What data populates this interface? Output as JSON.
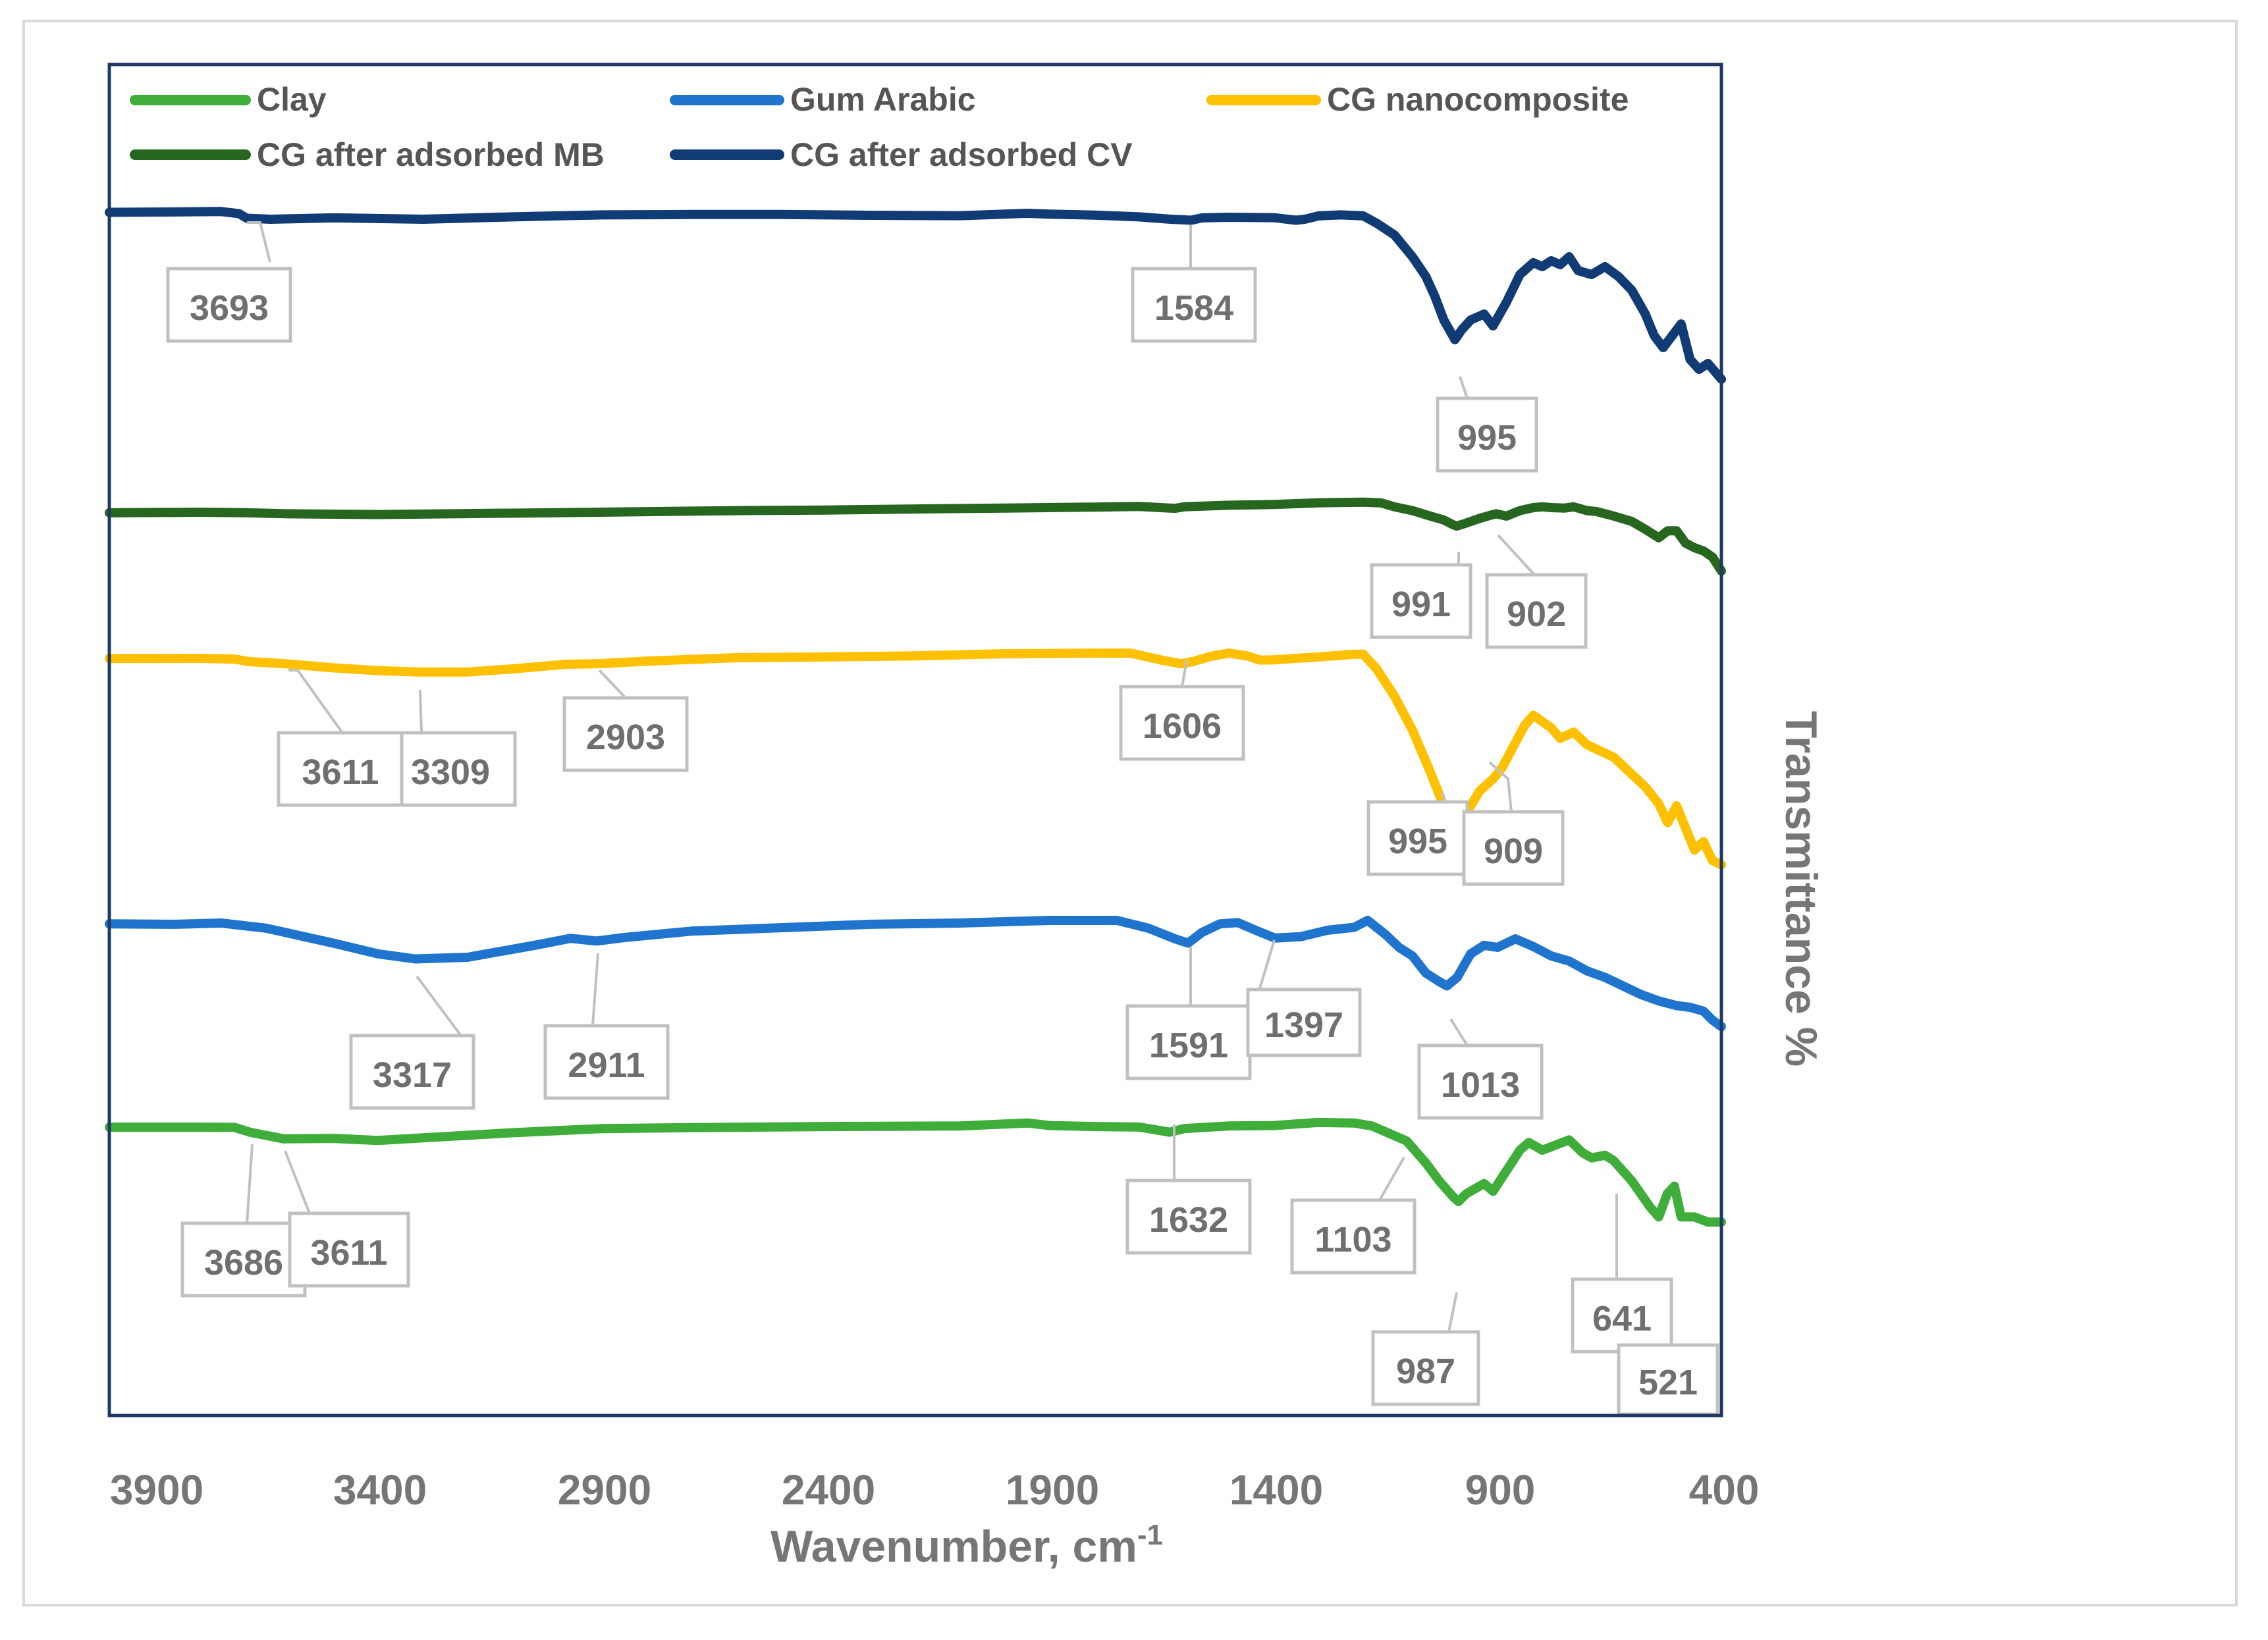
{
  "chart_data": {
    "type": "line",
    "title": "",
    "xlabel": "Wavenumber, cm",
    "xlabel_superscript": "-1",
    "ylabel": "Transmittance %",
    "xlim": [
      4000,
      400
    ],
    "x_ticks": [
      3900,
      3400,
      2900,
      2400,
      1900,
      1400,
      900,
      400
    ],
    "tick_labels": [
      "3900",
      "3400",
      "2900",
      "2400",
      "1900",
      "1400",
      "900",
      "400"
    ],
    "legend_position": "top, inside plot area",
    "grid": false,
    "series": [
      {
        "name": "Clay",
        "color": "#3ead3a",
        "points": [
          [
            4000,
            0.53
          ],
          [
            3800,
            0.52
          ],
          [
            3720,
            0.56
          ],
          [
            3686,
            1.5
          ],
          [
            3611,
            2.8
          ],
          [
            3500,
            2.7
          ],
          [
            3400,
            3.1
          ],
          [
            3300,
            2.6
          ],
          [
            3100,
            1.6
          ],
          [
            2900,
            0.8
          ],
          [
            2700,
            0.6
          ],
          [
            2400,
            0.4
          ],
          [
            2100,
            0.3
          ],
          [
            1950,
            -0.3
          ],
          [
            1900,
            0.2
          ],
          [
            1800,
            0.4
          ],
          [
            1700,
            0.5
          ],
          [
            1632,
            1.5
          ],
          [
            1600,
            0.8
          ],
          [
            1500,
            0.3
          ],
          [
            1400,
            0.2
          ],
          [
            1300,
            -0.4
          ],
          [
            1220,
            -0.3
          ],
          [
            1180,
            0.3
          ],
          [
            1103,
            3.2
          ],
          [
            1060,
            7.5
          ],
          [
            1030,
            11.0
          ],
          [
            1000,
            14.0
          ],
          [
            987,
            15.0
          ],
          [
            970,
            13.5
          ],
          [
            950,
            12.5
          ],
          [
            930,
            11.5
          ],
          [
            910,
            13.0
          ],
          [
            880,
            9.0
          ],
          [
            850,
            5.0
          ],
          [
            830,
            3.5
          ],
          [
            800,
            5.0
          ],
          [
            770,
            4.0
          ],
          [
            740,
            3.0
          ],
          [
            710,
            5.5
          ],
          [
            690,
            6.5
          ],
          [
            660,
            6.0
          ],
          [
            641,
            7.0
          ],
          [
            600,
            11.0
          ],
          [
            560,
            16.0
          ],
          [
            540,
            18.0
          ],
          [
            521,
            13.5
          ],
          [
            505,
            12.0
          ],
          [
            490,
            18.0
          ],
          [
            460,
            18.0
          ],
          [
            430,
            19.0
          ],
          [
            400,
            19.0
          ]
        ],
        "callouts": [
          3686,
          3611,
          1632,
          1103,
          987,
          641,
          521
        ]
      },
      {
        "name": "Gum Arabic",
        "color": "#1f74cd",
        "points": [
          [
            4000,
            0.5
          ],
          [
            3850,
            0.6
          ],
          [
            3750,
            0.3
          ],
          [
            3650,
            1.5
          ],
          [
            3500,
            5.0
          ],
          [
            3400,
            7.5
          ],
          [
            3317,
            8.7
          ],
          [
            3200,
            8.3
          ],
          [
            3050,
            5.5
          ],
          [
            2970,
            3.9
          ],
          [
            2911,
            4.5
          ],
          [
            2850,
            3.7
          ],
          [
            2700,
            2.2
          ],
          [
            2500,
            1.4
          ],
          [
            2300,
            0.6
          ],
          [
            2100,
            0.3
          ],
          [
            1900,
            -0.3
          ],
          [
            1750,
            -0.3
          ],
          [
            1680,
            1.5
          ],
          [
            1620,
            4.0
          ],
          [
            1591,
            5.0
          ],
          [
            1560,
            2.5
          ],
          [
            1520,
            0.5
          ],
          [
            1480,
            0.2
          ],
          [
            1440,
            2.0
          ],
          [
            1400,
            3.7
          ],
          [
            1397,
            3.8
          ],
          [
            1340,
            3.5
          ],
          [
            1280,
            2.0
          ],
          [
            1220,
            1.3
          ],
          [
            1190,
            -0.3
          ],
          [
            1150,
            3.0
          ],
          [
            1120,
            6.0
          ],
          [
            1090,
            8.0
          ],
          [
            1060,
            12.0
          ],
          [
            1030,
            14.0
          ],
          [
            1013,
            15.0
          ],
          [
            990,
            13.0
          ],
          [
            960,
            7.5
          ],
          [
            930,
            5.5
          ],
          [
            900,
            6.0
          ],
          [
            860,
            4.0
          ],
          [
            820,
            5.8
          ],
          [
            780,
            8.0
          ],
          [
            740,
            9.2
          ],
          [
            700,
            11.5
          ],
          [
            660,
            13.0
          ],
          [
            620,
            15.0
          ],
          [
            580,
            17.0
          ],
          [
            540,
            18.5
          ],
          [
            500,
            19.6
          ],
          [
            470,
            20.0
          ],
          [
            440,
            20.9
          ],
          [
            420,
            23.0
          ],
          [
            400,
            24.5
          ]
        ],
        "callouts": [
          3317,
          2911,
          1591,
          1397,
          1013
        ]
      },
      {
        "name": "CG nanocomposite",
        "color": "#ffc000",
        "points": [
          [
            4000,
            0.1
          ],
          [
            3800,
            0.0
          ],
          [
            3720,
            0.3
          ],
          [
            3690,
            1.5
          ],
          [
            3611,
            2.5
          ],
          [
            3500,
            4.5
          ],
          [
            3400,
            5.8
          ],
          [
            3309,
            6.5
          ],
          [
            3200,
            6.5
          ],
          [
            3100,
            5.0
          ],
          [
            2980,
            2.8
          ],
          [
            2903,
            2.5
          ],
          [
            2800,
            1.3
          ],
          [
            2600,
            -0.3
          ],
          [
            2400,
            -0.7
          ],
          [
            2200,
            -1.2
          ],
          [
            2000,
            -2.2
          ],
          [
            1800,
            -2.5
          ],
          [
            1720,
            -2.5
          ],
          [
            1650,
            0.8
          ],
          [
            1606,
            2.6
          ],
          [
            1580,
            1.5
          ],
          [
            1540,
            -1.0
          ],
          [
            1500,
            -2.5
          ],
          [
            1460,
            -1.2
          ],
          [
            1430,
            0.8
          ],
          [
            1400,
            0.7
          ],
          [
            1300,
            -0.7
          ],
          [
            1220,
            -1.9
          ],
          [
            1200,
            -2.0
          ],
          [
            1170,
            5.0
          ],
          [
            1130,
            18.0
          ],
          [
            1090,
            34.0
          ],
          [
            1050,
            54.0
          ],
          [
            1020,
            70.0
          ],
          [
            1000,
            82.0
          ],
          [
            995,
            84.0
          ],
          [
            975,
            77.0
          ],
          [
            960,
            70.0
          ],
          [
            940,
            63.0
          ],
          [
            909,
            57.0
          ],
          [
            890,
            52.0
          ],
          [
            860,
            40.0
          ],
          [
            840,
            32.0
          ],
          [
            820,
            27.0
          ],
          [
            780,
            33.0
          ],
          [
            760,
            38.0
          ],
          [
            730,
            35.0
          ],
          [
            700,
            41.0
          ],
          [
            670,
            44.0
          ],
          [
            640,
            47.0
          ],
          [
            610,
            53.0
          ],
          [
            570,
            61.0
          ],
          [
            540,
            69.0
          ],
          [
            520,
            78.0
          ],
          [
            500,
            70.0
          ],
          [
            485,
            78.0
          ],
          [
            460,
            91.0
          ],
          [
            440,
            87.0
          ],
          [
            420,
            96.0
          ],
          [
            400,
            98.0
          ]
        ],
        "callouts": [
          3611,
          3309,
          2903,
          1606,
          995,
          909
        ]
      },
      {
        "name": "CG after adsorbed MB",
        "color": "#27661f",
        "points": [
          [
            4000,
            0.4
          ],
          [
            3800,
            0.0
          ],
          [
            3700,
            0.3
          ],
          [
            3600,
            1.0
          ],
          [
            3400,
            1.5
          ],
          [
            3200,
            0.9
          ],
          [
            3000,
            0.3
          ],
          [
            2800,
            -0.4
          ],
          [
            2600,
            -1.0
          ],
          [
            2400,
            -1.4
          ],
          [
            2200,
            -2.1
          ],
          [
            2000,
            -2.7
          ],
          [
            1800,
            -3.3
          ],
          [
            1700,
            -3.7
          ],
          [
            1620,
            -2.5
          ],
          [
            1600,
            -3.5
          ],
          [
            1500,
            -4.5
          ],
          [
            1400,
            -5.0
          ],
          [
            1300,
            -6.1
          ],
          [
            1200,
            -6.5
          ],
          [
            1160,
            -6.0
          ],
          [
            1130,
            -3.5
          ],
          [
            1090,
            -1.0
          ],
          [
            1050,
            2.5
          ],
          [
            1020,
            5.0
          ],
          [
            1000,
            8.0
          ],
          [
            991,
            9.0
          ],
          [
            970,
            7.0
          ],
          [
            940,
            4.0
          ],
          [
            910,
            1.5
          ],
          [
            902,
            1.0
          ],
          [
            880,
            2.5
          ],
          [
            850,
            -1.0
          ],
          [
            820,
            -3.0
          ],
          [
            800,
            -3.5
          ],
          [
            780,
            -3.0
          ],
          [
            750,
            -2.7
          ],
          [
            730,
            -3.5
          ],
          [
            700,
            -1.0
          ],
          [
            680,
            -0.5
          ],
          [
            640,
            2.5
          ],
          [
            600,
            6.0
          ],
          [
            570,
            11.0
          ],
          [
            540,
            16.5
          ],
          [
            520,
            12.0
          ],
          [
            500,
            12.0
          ],
          [
            480,
            20.0
          ],
          [
            460,
            23.0
          ],
          [
            440,
            25.0
          ],
          [
            420,
            29.0
          ],
          [
            400,
            38.0
          ]
        ],
        "callouts": [
          991,
          902
        ]
      },
      {
        "name": "CG after adsorbed CV",
        "color": "#103b74",
        "points": [
          [
            4000,
            0.5
          ],
          [
            3850,
            0.3
          ],
          [
            3750,
            0.1
          ],
          [
            3710,
            1.2
          ],
          [
            3693,
            3.5
          ],
          [
            3640,
            4.0
          ],
          [
            3500,
            3.3
          ],
          [
            3300,
            4.0
          ],
          [
            3100,
            2.8
          ],
          [
            2900,
            1.8
          ],
          [
            2700,
            1.6
          ],
          [
            2500,
            1.6
          ],
          [
            2300,
            2.0
          ],
          [
            2100,
            2.2
          ],
          [
            1950,
            1.0
          ],
          [
            1900,
            1.4
          ],
          [
            1800,
            1.9
          ],
          [
            1700,
            2.8
          ],
          [
            1630,
            4.0
          ],
          [
            1584,
            4.5
          ],
          [
            1560,
            3.3
          ],
          [
            1500,
            3.0
          ],
          [
            1400,
            3.2
          ],
          [
            1350,
            4.5
          ],
          [
            1330,
            4.0
          ],
          [
            1300,
            2.3
          ],
          [
            1250,
            1.8
          ],
          [
            1200,
            2.3
          ],
          [
            1170,
            6.0
          ],
          [
            1130,
            12.0
          ],
          [
            1090,
            23.0
          ],
          [
            1060,
            33.0
          ],
          [
            1040,
            43.0
          ],
          [
            1020,
            55.0
          ],
          [
            1000,
            63.0
          ],
          [
            995,
            65.0
          ],
          [
            980,
            60.0
          ],
          [
            960,
            55.0
          ],
          [
            930,
            52.0
          ],
          [
            910,
            58.0
          ],
          [
            880,
            46.0
          ],
          [
            850,
            32.0
          ],
          [
            820,
            26.0
          ],
          [
            800,
            28.0
          ],
          [
            780,
            25.0
          ],
          [
            760,
            27.0
          ],
          [
            740,
            23.0
          ],
          [
            720,
            30.0
          ],
          [
            690,
            32.0
          ],
          [
            660,
            28.0
          ],
          [
            630,
            33.0
          ],
          [
            600,
            40.0
          ],
          [
            570,
            52.0
          ],
          [
            550,
            63.0
          ],
          [
            530,
            69.0
          ],
          [
            510,
            63.0
          ],
          [
            490,
            57.0
          ],
          [
            470,
            75.0
          ],
          [
            450,
            80.0
          ],
          [
            430,
            77.0
          ],
          [
            400,
            85.0
          ]
        ],
        "callouts": [
          3693,
          1584,
          995
        ]
      }
    ],
    "callout_labels": [
      "3693",
      "1584",
      "995",
      "991",
      "902",
      "3611",
      "3309",
      "2903",
      "1606",
      "995",
      "909",
      "3317",
      "2911",
      "1591",
      "1397",
      "1013",
      "3686",
      "3611",
      "1632",
      "1103",
      "987",
      "641",
      "521"
    ]
  }
}
